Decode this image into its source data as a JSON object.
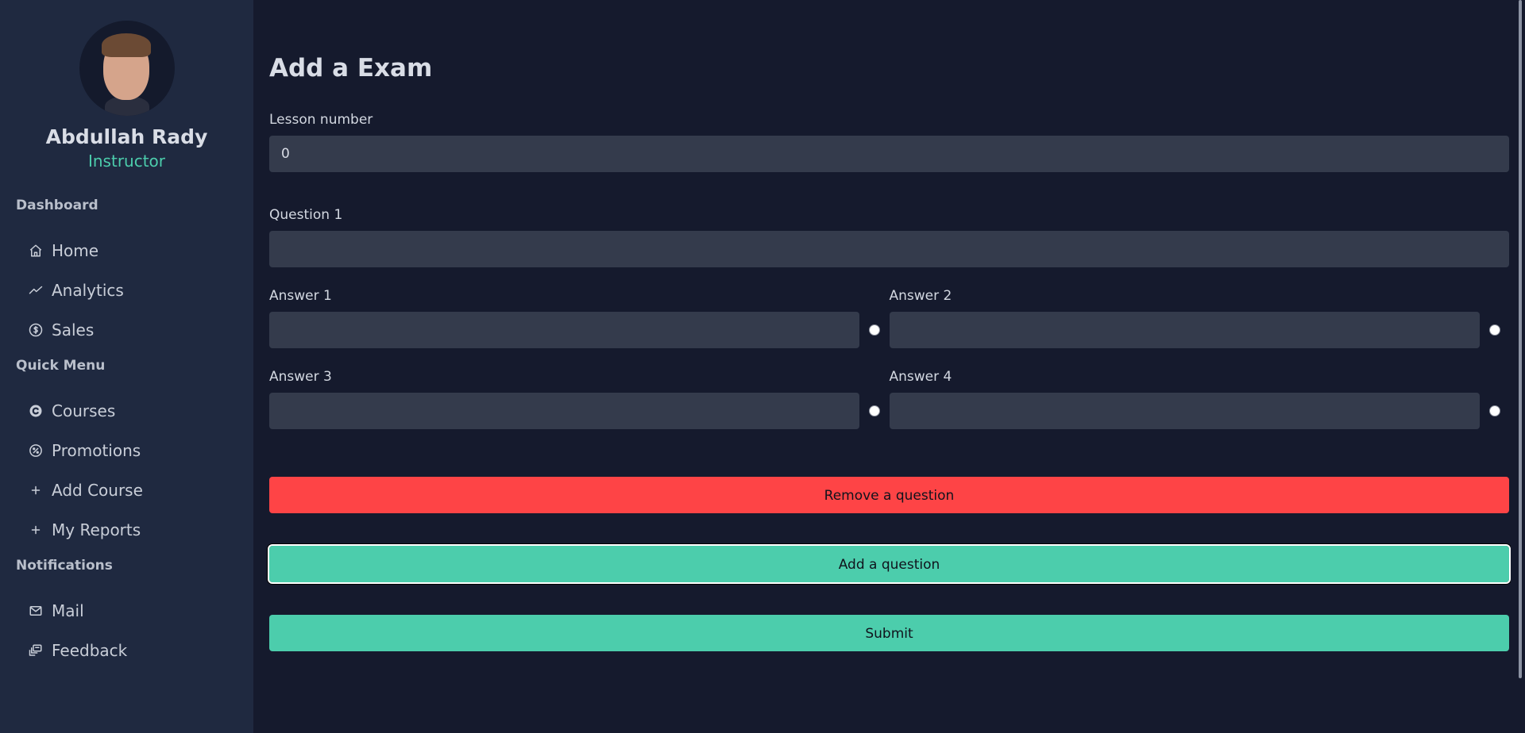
{
  "sidebar": {
    "profile": {
      "name": "Abdullah Rady",
      "role": "Instructor"
    },
    "sections": [
      {
        "title": "Dashboard",
        "items": [
          {
            "label": "Home",
            "icon": "home-icon"
          },
          {
            "label": "Analytics",
            "icon": "trend-line-icon"
          },
          {
            "label": "Sales",
            "icon": "dollar-circle-icon"
          }
        ]
      },
      {
        "title": "Quick Menu",
        "items": [
          {
            "label": "Courses",
            "icon": "c-circle-icon"
          },
          {
            "label": "Promotions",
            "icon": "badge-percent-icon"
          },
          {
            "label": "Add Course",
            "icon": "plus-icon"
          },
          {
            "label": "My Reports",
            "icon": "plus-icon"
          }
        ]
      },
      {
        "title": "Notifications",
        "items": [
          {
            "label": "Mail",
            "icon": "mail-icon"
          },
          {
            "label": "Feedback",
            "icon": "feedback-icon"
          }
        ]
      }
    ]
  },
  "main": {
    "title": "Add a Exam",
    "lesson": {
      "label": "Lesson number",
      "value": "0"
    },
    "question": {
      "label": "Question 1",
      "value": ""
    },
    "answers": [
      {
        "label": "Answer 1",
        "value": ""
      },
      {
        "label": "Answer 2",
        "value": ""
      },
      {
        "label": "Answer 3",
        "value": ""
      },
      {
        "label": "Answer 4",
        "value": ""
      }
    ],
    "buttons": {
      "remove": "Remove a question",
      "add": "Add a question",
      "submit": "Submit"
    }
  },
  "colors": {
    "sidebar_bg": "#1f2940",
    "main_bg": "#151a2d",
    "input_bg": "#343b4c",
    "accent_green": "#4ccdac",
    "danger_red": "#fe4446"
  }
}
